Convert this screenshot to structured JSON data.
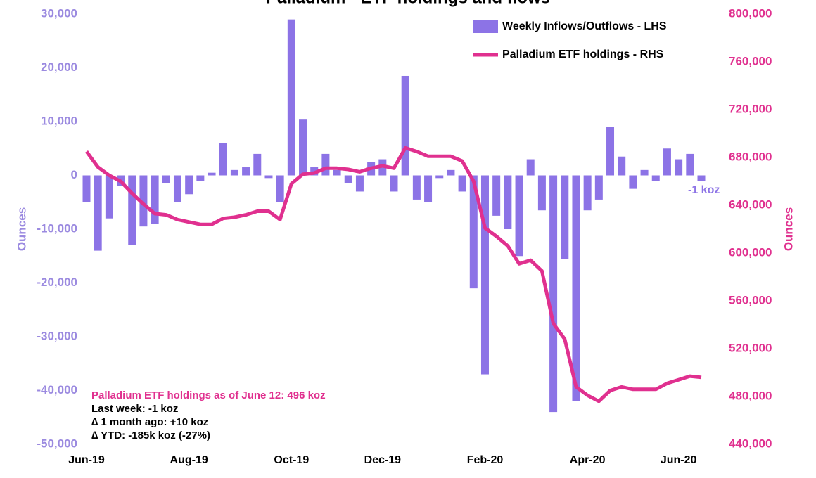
{
  "chart_data": {
    "type": "bar_line",
    "title": "Palladium - ETF holdings and flows",
    "y_label": "Ounces",
    "y2_label": "Ounces",
    "categories": [
      "Jun-19",
      null,
      null,
      null,
      null,
      null,
      null,
      null,
      null,
      "Aug-19",
      null,
      null,
      null,
      null,
      null,
      null,
      null,
      null,
      "Oct-19",
      null,
      null,
      null,
      null,
      null,
      null,
      null,
      "Dec-19",
      null,
      null,
      null,
      null,
      null,
      null,
      null,
      null,
      "Feb-20",
      null,
      null,
      null,
      null,
      null,
      null,
      null,
      null,
      "Apr-20",
      null,
      null,
      null,
      null,
      null,
      null,
      null,
      "Jun-20",
      null,
      null
    ],
    "series": [
      {
        "name": "Weekly Inflows/Outflows - LHS",
        "color": "#8c73e6",
        "kind": "bar",
        "values": [
          -5000,
          -14000,
          -8000,
          -2000,
          -13000,
          -9500,
          -9000,
          -1500,
          -5000,
          -3500,
          -1000,
          500,
          6000,
          1000,
          1500,
          4000,
          -500,
          -5000,
          29000,
          10500,
          1500,
          4000,
          1000,
          -1500,
          -3000,
          2500,
          3000,
          -3000,
          18500,
          -4500,
          -5000,
          -500,
          1000,
          -3000,
          -21000,
          -37000,
          -7500,
          -10000,
          -15000,
          3000,
          -6500,
          -44000,
          -15500,
          -42000,
          -6500,
          -4500,
          9000,
          3500,
          -2500,
          1000,
          -1000,
          5000,
          3000,
          4000,
          -1000
        ]
      },
      {
        "name": "Palladium ETF holdings - RHS",
        "color": "#e0308f",
        "kind": "line",
        "axis": "y2",
        "values": [
          685000,
          672000,
          665000,
          660000,
          650000,
          641000,
          633000,
          632000,
          628000,
          626000,
          624000,
          624000,
          629000,
          630000,
          632000,
          635000,
          635000,
          628000,
          658000,
          666000,
          667000,
          671000,
          671000,
          670000,
          668000,
          671000,
          673000,
          671000,
          688000,
          685000,
          681000,
          681000,
          681000,
          677000,
          660000,
          621000,
          614000,
          606000,
          591000,
          594000,
          585000,
          541000,
          528000,
          488000,
          481000,
          476000,
          485000,
          488000,
          486000,
          486000,
          486000,
          491000,
          494000,
          497000,
          496000
        ]
      }
    ],
    "ylim": [
      -50000,
      30000
    ],
    "yticks": [
      {
        "value": -50000,
        "label": "-50,000"
      },
      {
        "value": -40000,
        "label": "-40,000"
      },
      {
        "value": -30000,
        "label": "-30,000"
      },
      {
        "value": -20000,
        "label": "-20,000"
      },
      {
        "value": -10000,
        "label": "-10,000"
      },
      0,
      {
        "value": 10000,
        "label": "10,000"
      },
      {
        "value": 20000,
        "label": "20,000"
      },
      {
        "value": 30000,
        "label": "30,000"
      }
    ],
    "y2lim": [
      440000,
      800000
    ],
    "y2ticks": [
      {
        "value": 440000,
        "label": "440,000"
      },
      {
        "value": 480000,
        "label": "480,000"
      },
      {
        "value": 520000,
        "label": "520,000"
      },
      {
        "value": 560000,
        "label": "560,000"
      },
      {
        "value": 600000,
        "label": "600,000"
      },
      {
        "value": 640000,
        "label": "640,000"
      },
      {
        "value": 680000,
        "label": "680,000"
      },
      {
        "value": 720000,
        "label": "720,000"
      },
      {
        "value": 760000,
        "label": "760,000"
      },
      {
        "value": 800000,
        "label": "800,000"
      }
    ],
    "last_label": "-1 koz",
    "notes": [
      "Palladium ETF holdings as of June 12: 496 koz",
      "Last week: -1 koz",
      "∆ 1 month ago: +10 koz",
      "∆ YTD: -185k koz (-27%)"
    ],
    "legend": "top-right"
  }
}
